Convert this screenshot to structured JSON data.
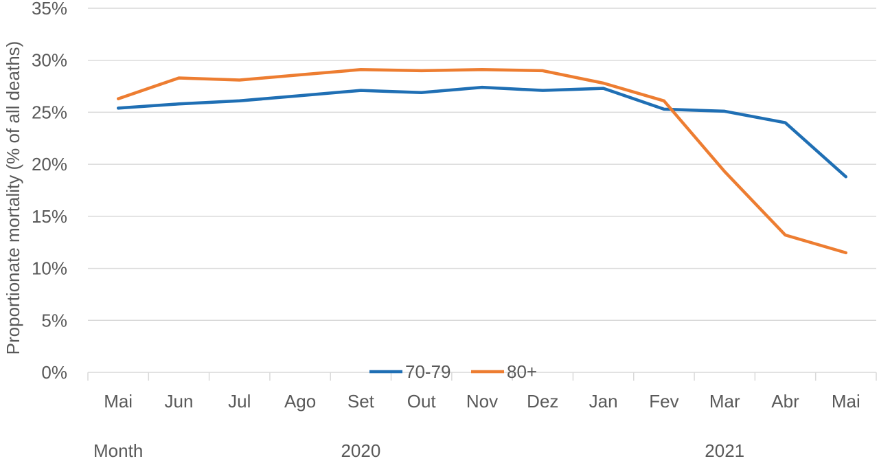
{
  "chart_data": {
    "type": "line",
    "ylabel": "Proportionate mortality (% of all deaths)",
    "ylim": [
      0,
      35
    ],
    "y_ticks": [
      "0%",
      "5%",
      "10%",
      "15%",
      "20%",
      "25%",
      "30%",
      "35%"
    ],
    "y_tick_values": [
      0,
      5,
      10,
      15,
      20,
      25,
      30,
      35
    ],
    "categories": [
      "Mai",
      "Jun",
      "Jul",
      "Ago",
      "Set",
      "Out",
      "Nov",
      "Dez",
      "Jan",
      "Fev",
      "Mar",
      "Abr",
      "Mai"
    ],
    "groups": [
      {
        "label": "Month",
        "from": 0,
        "to": 1
      },
      {
        "label": "2020",
        "from": 1,
        "to": 8
      },
      {
        "label": "2021",
        "from": 8,
        "to": 13
      }
    ],
    "grid": true,
    "legend_position": "bottom-center",
    "series": [
      {
        "name": "70-79",
        "color": "#1f6fb4",
        "values": [
          25.4,
          25.8,
          26.1,
          26.6,
          27.1,
          26.9,
          27.4,
          27.1,
          27.3,
          25.3,
          25.1,
          24.0,
          18.8
        ]
      },
      {
        "name": "80+",
        "color": "#ed7d31",
        "values": [
          26.3,
          28.3,
          28.1,
          28.6,
          29.1,
          29.0,
          29.1,
          29.0,
          27.8,
          26.1,
          19.3,
          13.2,
          11.5
        ]
      }
    ]
  }
}
